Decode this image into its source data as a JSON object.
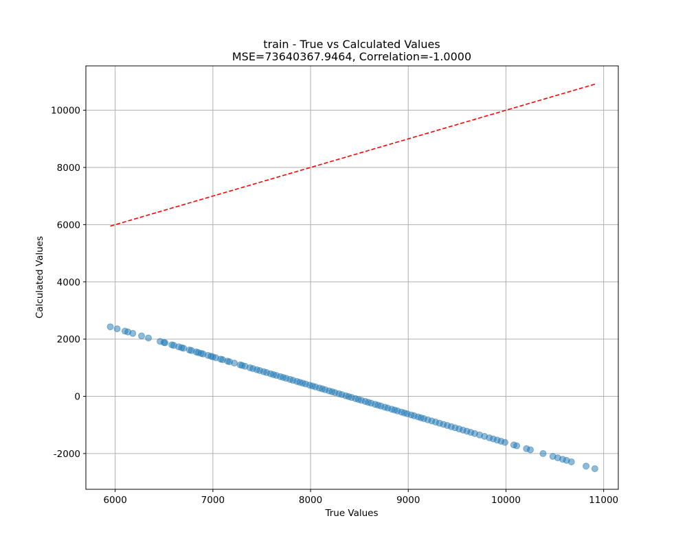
{
  "chart_data": {
    "type": "scatter",
    "title": "train - True vs Calculated Values",
    "subtitle": "MSE=73640367.9464, Correlation=-1.0000",
    "xlabel": "True Values",
    "ylabel": "Calculated Values",
    "xlim": [
      5700,
      11150
    ],
    "ylim": [
      -3250,
      11550
    ],
    "xticks": [
      6000,
      7000,
      8000,
      9000,
      10000,
      11000
    ],
    "xtick_labels": [
      "6000",
      "7000",
      "8000",
      "9000",
      "10000",
      "11000"
    ],
    "yticks": [
      -2000,
      0,
      2000,
      4000,
      6000,
      8000,
      10000
    ],
    "ytick_labels": [
      "-2000",
      "0",
      "2000",
      "4000",
      "6000",
      "8000",
      "10000"
    ],
    "grid": true,
    "colors": {
      "points": "#1f77b4",
      "reference_line": "#ff0000",
      "grid": "#b0b0b0"
    },
    "reference_line": {
      "style": "dashed",
      "x": [
        5950,
        10910
      ],
      "y": [
        5950,
        10910
      ]
    },
    "series": [
      {
        "marker": "circle",
        "alpha": 0.5,
        "x": [
          5950,
          6020,
          6100,
          6130,
          6180,
          6270,
          6340,
          6460,
          6500,
          6510,
          6580,
          6600,
          6650,
          6680,
          6700,
          6760,
          6780,
          6830,
          6850,
          6880,
          6900,
          6950,
          6980,
          7000,
          7030,
          7080,
          7100,
          7150,
          7170,
          7220,
          7280,
          7300,
          7330,
          7380,
          7410,
          7450,
          7480,
          7520,
          7550,
          7590,
          7620,
          7650,
          7690,
          7720,
          7750,
          7790,
          7820,
          7860,
          7890,
          7920,
          7950,
          7990,
          8020,
          8050,
          8090,
          8120,
          8150,
          8190,
          8220,
          8250,
          8290,
          8320,
          8360,
          8390,
          8420,
          8460,
          8490,
          8520,
          8560,
          8590,
          8620,
          8660,
          8690,
          8720,
          8760,
          8790,
          8830,
          8860,
          8890,
          8930,
          8960,
          8990,
          9030,
          9060,
          9100,
          9130,
          9160,
          9200,
          9240,
          9280,
          9320,
          9360,
          9400,
          9440,
          9480,
          9520,
          9560,
          9600,
          9640,
          9680,
          9730,
          9780,
          9830,
          9870,
          9910,
          9950,
          9990,
          10080,
          10110,
          10210,
          10250,
          10380,
          10480,
          10530,
          10580,
          10620,
          10670,
          10820,
          10910
        ],
        "y": [
          2430,
          2360,
          2280,
          2250,
          2200,
          2110,
          2040,
          1920,
          1880,
          1870,
          1800,
          1780,
          1730,
          1700,
          1680,
          1620,
          1600,
          1550,
          1530,
          1500,
          1480,
          1430,
          1400,
          1380,
          1350,
          1300,
          1280,
          1230,
          1210,
          1160,
          1100,
          1080,
          1050,
          1000,
          970,
          930,
          900,
          860,
          830,
          790,
          760,
          730,
          690,
          660,
          630,
          590,
          560,
          520,
          490,
          460,
          430,
          390,
          360,
          330,
          290,
          260,
          230,
          190,
          160,
          130,
          90,
          60,
          20,
          -10,
          -40,
          -80,
          -110,
          -140,
          -180,
          -210,
          -240,
          -280,
          -310,
          -340,
          -380,
          -410,
          -450,
          -480,
          -510,
          -550,
          -580,
          -610,
          -650,
          -680,
          -720,
          -750,
          -780,
          -820,
          -860,
          -900,
          -940,
          -980,
          -1020,
          -1060,
          -1100,
          -1140,
          -1180,
          -1220,
          -1260,
          -1300,
          -1350,
          -1400,
          -1450,
          -1490,
          -1530,
          -1570,
          -1610,
          -1700,
          -1730,
          -1830,
          -1870,
          -2000,
          -2100,
          -2150,
          -2200,
          -2240,
          -2290,
          -2440,
          -2530
        ]
      }
    ]
  }
}
